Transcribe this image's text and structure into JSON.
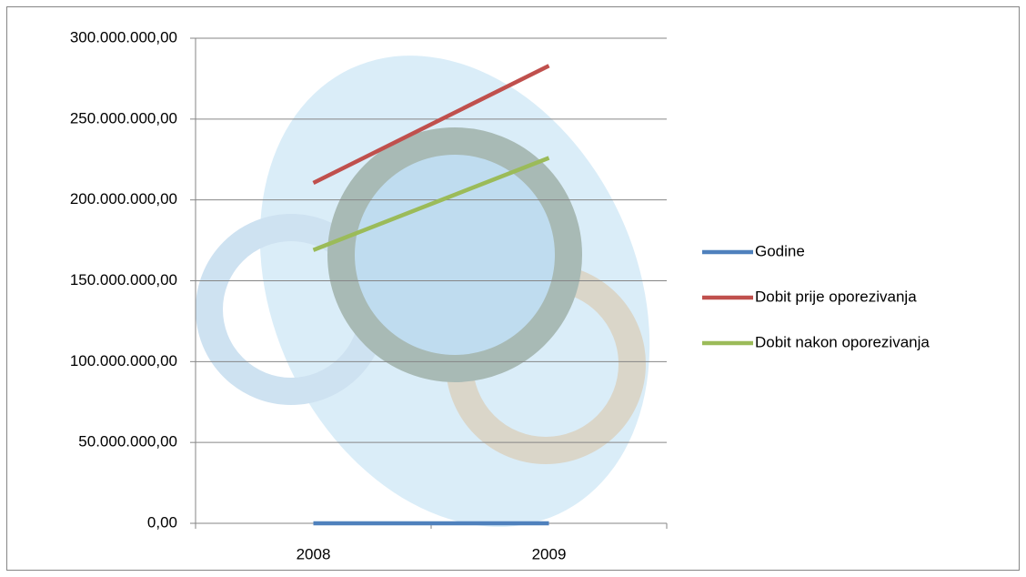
{
  "chart_data": {
    "type": "line",
    "categories": [
      "2008",
      "2009"
    ],
    "series": [
      {
        "name": "Godine",
        "color": "#4f81bd",
        "values": [
          2008,
          2009
        ]
      },
      {
        "name": "Dobit prije oporezivanja",
        "color": "#c0504d",
        "values": [
          210500000,
          283000000
        ]
      },
      {
        "name": "Dobit nakon oporezivanja",
        "color": "#9bbb59",
        "values": [
          169000000,
          226000000
        ]
      }
    ],
    "ylim": [
      0,
      300000000
    ],
    "yticks": [
      {
        "value": 0,
        "label": "0,00"
      },
      {
        "value": 50000000,
        "label": "50.000.000,00"
      },
      {
        "value": 100000000,
        "label": "100.000.000,00"
      },
      {
        "value": 150000000,
        "label": "150.000.000,00"
      },
      {
        "value": 200000000,
        "label": "200.000.000,00"
      },
      {
        "value": 250000000,
        "label": "250.000.000,00"
      },
      {
        "value": 300000000,
        "label": "300.000.000,00"
      }
    ],
    "grid": true,
    "legend": "right"
  }
}
